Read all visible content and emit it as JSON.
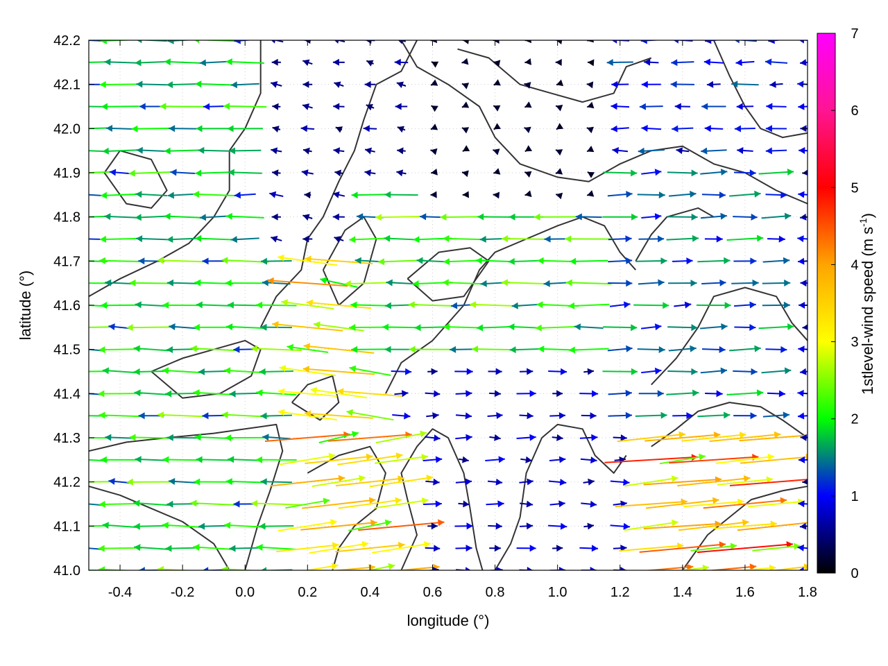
{
  "chart_data": {
    "type": "vector-field",
    "xlabel": "longitude (°)",
    "ylabel": "latitude (°)",
    "colorbar_label": "1stlevel-wind speed (m s",
    "colorbar_label_sup": "-1",
    "colorbar_label_end": ")",
    "xlim": [
      -0.5,
      1.8
    ],
    "ylim": [
      41.0,
      42.2
    ],
    "colorbar_range": [
      0,
      7
    ],
    "x_ticks": [
      "-0.4",
      "-0.2",
      "0.0",
      "0.2",
      "0.4",
      "0.6",
      "0.8",
      "1.0",
      "1.2",
      "1.4",
      "1.6",
      "1.8"
    ],
    "x_tick_values": [
      -0.4,
      -0.2,
      0.0,
      0.2,
      0.4,
      0.6,
      0.8,
      1.0,
      1.2,
      1.4,
      1.6,
      1.8
    ],
    "y_ticks": [
      "41.0",
      "41.1",
      "41.2",
      "41.3",
      "41.4",
      "41.5",
      "41.6",
      "41.7",
      "41.8",
      "41.9",
      "42.0",
      "42.1",
      "42.2"
    ],
    "y_tick_values": [
      41.0,
      41.1,
      41.2,
      41.3,
      41.4,
      41.5,
      41.6,
      41.7,
      41.8,
      41.9,
      42.0,
      42.1,
      42.2
    ],
    "colorbar_ticks": [
      "0",
      "1",
      "2",
      "3",
      "4",
      "5",
      "6",
      "7"
    ],
    "colorbar_tick_values": [
      0,
      1,
      2,
      3,
      4,
      5,
      6,
      7
    ],
    "colormap": [
      "#000000",
      "#0000ff",
      "#00ff00",
      "#ffff00",
      "#ffa500",
      "#ff0000",
      "#ff00ff"
    ],
    "grid": true,
    "grid_step": {
      "lon": 0.1,
      "lat": 0.05
    },
    "wind_regions": [
      {
        "lon": [
          -0.5,
          0.1
        ],
        "lat": [
          41.0,
          41.7
        ],
        "u": -2.2,
        "v": 0.05
      },
      {
        "lon": [
          -0.5,
          0.0
        ],
        "lat": [
          41.7,
          42.2
        ],
        "u": -2.0,
        "v": 0.0
      },
      {
        "lon": [
          0.0,
          0.6
        ],
        "lat": [
          41.7,
          42.2
        ],
        "u": -0.6,
        "v": 0.1
      },
      {
        "lon": [
          0.1,
          0.5
        ],
        "lat": [
          41.3,
          41.7
        ],
        "u": -3.6,
        "v": 0.4
      },
      {
        "lon": [
          0.4,
          1.1
        ],
        "lat": [
          41.45,
          41.85
        ],
        "u": -2.3,
        "v": 0.0
      },
      {
        "lon": [
          0.6,
          1.2
        ],
        "lat": [
          41.8,
          42.2
        ],
        "u": -0.2,
        "v": 0.0
      },
      {
        "lon": [
          0.5,
          1.3
        ],
        "lat": [
          41.0,
          41.45
        ],
        "u": 0.9,
        "v": 0.0
      },
      {
        "lon": [
          1.1,
          1.8
        ],
        "lat": [
          41.3,
          41.9
        ],
        "u": 1.6,
        "v": 0.05
      },
      {
        "lon": [
          1.2,
          1.8
        ],
        "lat": [
          41.9,
          42.2
        ],
        "u": -1.2,
        "v": 0.0
      },
      {
        "lon": [
          1.3,
          1.8
        ],
        "lat": [
          41.0,
          41.3
        ],
        "u": 4.2,
        "v": 0.4
      },
      {
        "lon": [
          0.1,
          0.5
        ],
        "lat": [
          41.0,
          41.3
        ],
        "u": 3.8,
        "v": 0.5
      }
    ],
    "contours": [
      [
        [
          -0.5,
          41.19
        ],
        [
          -0.4,
          41.17
        ],
        [
          -0.3,
          41.14
        ],
        [
          -0.2,
          41.11
        ],
        [
          -0.1,
          41.06
        ],
        [
          -0.05,
          41.0
        ]
      ],
      [
        [
          -0.5,
          41.27
        ],
        [
          -0.38,
          41.29
        ],
        [
          -0.25,
          41.3
        ],
        [
          -0.1,
          41.31
        ],
        [
          0.0,
          41.32
        ],
        [
          0.1,
          41.33
        ],
        [
          0.12,
          41.27
        ],
        [
          0.08,
          41.18
        ],
        [
          0.04,
          41.1
        ],
        [
          0.0,
          41.0
        ]
      ],
      [
        [
          -0.5,
          41.62
        ],
        [
          -0.4,
          41.66
        ],
        [
          -0.28,
          41.7
        ],
        [
          -0.18,
          41.74
        ],
        [
          -0.1,
          41.8
        ],
        [
          -0.05,
          41.86
        ],
        [
          -0.05,
          41.95
        ],
        [
          0.0,
          42.0
        ],
        [
          0.05,
          42.08
        ],
        [
          0.05,
          42.2
        ]
      ],
      [
        [
          -0.4,
          41.95
        ],
        [
          -0.3,
          41.93
        ],
        [
          -0.25,
          41.86
        ],
        [
          -0.3,
          41.82
        ],
        [
          -0.38,
          41.83
        ],
        [
          -0.45,
          41.9
        ],
        [
          -0.4,
          41.95
        ]
      ],
      [
        [
          0.05,
          41.55
        ],
        [
          0.1,
          41.62
        ],
        [
          0.18,
          41.68
        ],
        [
          0.2,
          41.75
        ],
        [
          0.25,
          41.8
        ],
        [
          0.3,
          41.88
        ],
        [
          0.35,
          41.95
        ],
        [
          0.38,
          42.02
        ],
        [
          0.42,
          42.1
        ],
        [
          0.5,
          42.13
        ],
        [
          0.55,
          42.2
        ]
      ],
      [
        [
          0.25,
          41.68
        ],
        [
          0.32,
          41.77
        ],
        [
          0.38,
          41.8
        ],
        [
          0.42,
          41.75
        ],
        [
          0.38,
          41.65
        ],
        [
          0.3,
          41.6
        ],
        [
          0.25,
          41.68
        ]
      ],
      [
        [
          0.45,
          41.4
        ],
        [
          0.5,
          41.47
        ],
        [
          0.6,
          41.52
        ],
        [
          0.7,
          41.6
        ],
        [
          0.75,
          41.68
        ],
        [
          0.8,
          41.72
        ],
        [
          0.9,
          41.75
        ],
        [
          1.0,
          41.78
        ],
        [
          1.08,
          41.8
        ],
        [
          1.15,
          41.78
        ],
        [
          1.2,
          41.72
        ],
        [
          1.25,
          41.68
        ]
      ],
      [
        [
          0.52,
          41.66
        ],
        [
          0.6,
          41.61
        ],
        [
          0.7,
          41.62
        ],
        [
          0.78,
          41.7
        ],
        [
          0.72,
          41.73
        ],
        [
          0.62,
          41.72
        ],
        [
          0.52,
          41.66
        ]
      ],
      [
        [
          0.5,
          42.2
        ],
        [
          0.55,
          42.14
        ],
        [
          0.65,
          42.1
        ],
        [
          0.75,
          42.05
        ],
        [
          0.8,
          41.98
        ],
        [
          0.88,
          41.92
        ],
        [
          1.0,
          41.89
        ],
        [
          1.1,
          41.88
        ],
        [
          1.2,
          41.92
        ],
        [
          1.3,
          41.95
        ],
        [
          1.4,
          41.96
        ],
        [
          1.5,
          41.92
        ],
        [
          1.6,
          41.9
        ],
        [
          1.7,
          41.86
        ],
        [
          1.8,
          41.83
        ]
      ],
      [
        [
          0.68,
          42.18
        ],
        [
          0.78,
          42.16
        ],
        [
          0.88,
          42.1
        ],
        [
          0.98,
          42.08
        ],
        [
          1.08,
          42.06
        ],
        [
          1.18,
          42.08
        ],
        [
          1.22,
          42.14
        ],
        [
          1.3,
          42.16
        ]
      ],
      [
        [
          0.2,
          41.22
        ],
        [
          0.3,
          41.26
        ],
        [
          0.4,
          41.28
        ],
        [
          0.45,
          41.22
        ],
        [
          0.42,
          41.14
        ],
        [
          0.35,
          41.1
        ],
        [
          0.3,
          41.05
        ],
        [
          0.28,
          41.0
        ]
      ],
      [
        [
          0.5,
          41.0
        ],
        [
          0.55,
          41.08
        ],
        [
          0.52,
          41.16
        ],
        [
          0.5,
          41.22
        ],
        [
          0.55,
          41.28
        ],
        [
          0.6,
          41.32
        ],
        [
          0.65,
          41.3
        ],
        [
          0.7,
          41.22
        ],
        [
          0.72,
          41.14
        ],
        [
          0.74,
          41.05
        ],
        [
          0.76,
          41.0
        ]
      ],
      [
        [
          0.8,
          41.0
        ],
        [
          0.85,
          41.06
        ],
        [
          0.88,
          41.12
        ],
        [
          0.9,
          41.22
        ],
        [
          0.95,
          41.3
        ],
        [
          1.0,
          41.33
        ],
        [
          1.08,
          41.32
        ],
        [
          1.12,
          41.26
        ],
        [
          1.18,
          41.22
        ],
        [
          1.22,
          41.26
        ]
      ],
      [
        [
          1.3,
          41.28
        ],
        [
          1.38,
          41.32
        ],
        [
          1.45,
          41.36
        ],
        [
          1.55,
          41.38
        ],
        [
          1.65,
          41.37
        ],
        [
          1.72,
          41.34
        ],
        [
          1.8,
          41.3
        ]
      ],
      [
        [
          1.3,
          41.42
        ],
        [
          1.38,
          41.48
        ],
        [
          1.45,
          41.55
        ],
        [
          1.5,
          41.62
        ],
        [
          1.6,
          41.64
        ],
        [
          1.7,
          41.62
        ],
        [
          1.75,
          41.56
        ],
        [
          1.8,
          41.52
        ]
      ],
      [
        [
          1.25,
          41.7
        ],
        [
          1.3,
          41.76
        ],
        [
          1.35,
          41.8
        ],
        [
          1.45,
          41.82
        ],
        [
          1.5,
          41.8
        ]
      ],
      [
        [
          1.4,
          41.0
        ],
        [
          1.48,
          41.08
        ],
        [
          1.55,
          41.12
        ],
        [
          1.62,
          41.16
        ],
        [
          1.72,
          41.18
        ],
        [
          1.8,
          41.19
        ]
      ],
      [
        [
          -0.3,
          41.45
        ],
        [
          -0.2,
          41.48
        ],
        [
          -0.1,
          41.5
        ],
        [
          0.0,
          41.52
        ],
        [
          0.05,
          41.5
        ],
        [
          0.02,
          41.44
        ],
        [
          -0.08,
          41.4
        ],
        [
          -0.2,
          41.39
        ],
        [
          -0.3,
          41.45
        ]
      ],
      [
        [
          0.15,
          41.38
        ],
        [
          0.2,
          41.42
        ],
        [
          0.28,
          41.44
        ],
        [
          0.3,
          41.38
        ],
        [
          0.24,
          41.34
        ],
        [
          0.15,
          41.38
        ]
      ],
      [
        [
          1.5,
          42.2
        ],
        [
          1.55,
          42.12
        ],
        [
          1.6,
          42.05
        ],
        [
          1.65,
          42.0
        ],
        [
          1.72,
          41.98
        ],
        [
          1.8,
          41.99
        ]
      ]
    ]
  }
}
